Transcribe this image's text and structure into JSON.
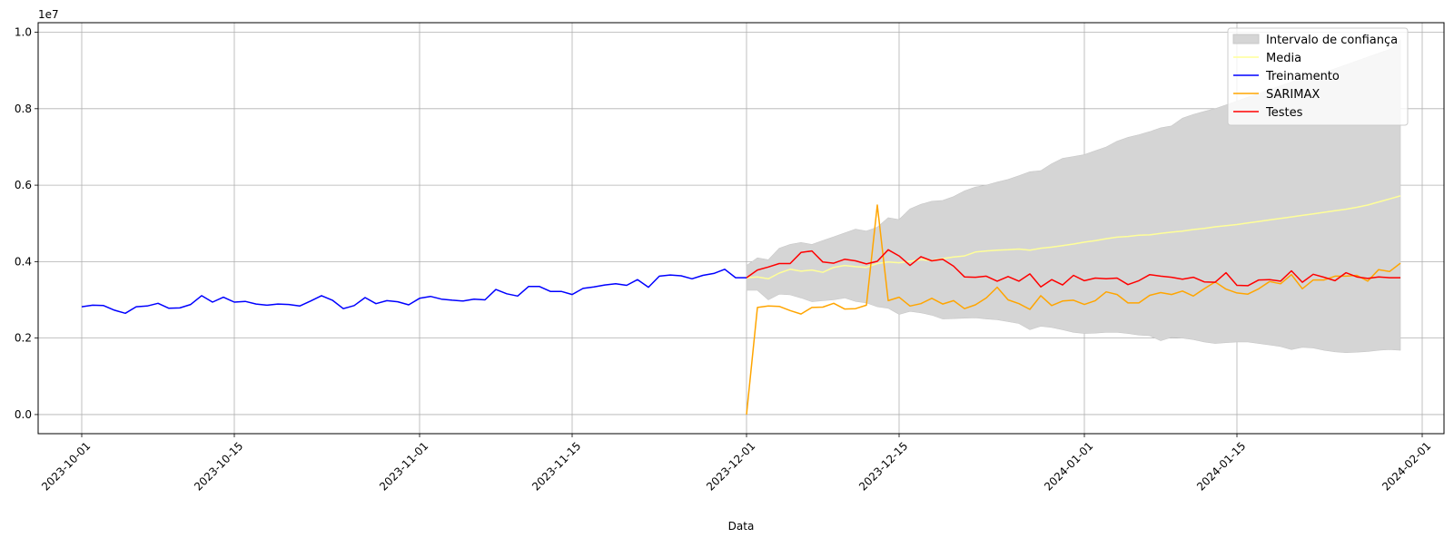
{
  "chart_data": {
    "type": "line",
    "xlabel": "Data",
    "ylabel": "",
    "y_scale_exponent": "1e7",
    "xlim": [
      "2023-09-27",
      "2024-02-03"
    ],
    "ylim": [
      -500000,
      10250000
    ],
    "grid": true,
    "legend_position": "top-right",
    "x_ticks": [
      "2023-10-01",
      "2023-10-15",
      "2023-11-01",
      "2023-11-15",
      "2023-12-01",
      "2023-12-15",
      "2024-01-01",
      "2024-01-15",
      "2024-02-01"
    ],
    "y_ticks": [
      0.0,
      0.2,
      0.4,
      0.6,
      0.8,
      1.0
    ],
    "legend": [
      "Intervalo de confiança",
      "Media",
      "Treinamento",
      "SARIMAX",
      "Testes"
    ],
    "series": [
      {
        "name": "Treinamento",
        "color": "#0000ff",
        "start_date": "2023-10-01",
        "values": [
          2820000,
          2860000,
          2850000,
          2730000,
          2650000,
          2820000,
          2840000,
          2910000,
          2780000,
          2790000,
          2880000,
          3110000,
          2940000,
          3070000,
          2940000,
          2960000,
          2890000,
          2860000,
          2890000,
          2880000,
          2840000,
          2970000,
          3110000,
          2990000,
          2770000,
          2850000,
          3060000,
          2900000,
          2980000,
          2950000,
          2870000,
          3040000,
          3090000,
          3020000,
          2990000,
          2970000,
          3020000,
          3000000,
          3270000,
          3160000,
          3100000,
          3350000,
          3350000,
          3220000,
          3220000,
          3140000,
          3300000,
          3340000,
          3390000,
          3420000,
          3380000,
          3530000,
          3330000,
          3620000,
          3650000,
          3630000,
          3550000,
          3640000,
          3690000,
          3800000,
          3580000,
          3580000
        ]
      },
      {
        "name": "Testes",
        "color": "#ff0000",
        "start_date": "2023-12-01",
        "values": [
          3580000,
          3780000,
          3860000,
          3950000,
          3950000,
          4240000,
          4280000,
          3990000,
          3960000,
          4060000,
          4020000,
          3940000,
          4010000,
          4310000,
          4150000,
          3900000,
          4130000,
          4020000,
          4060000,
          3880000,
          3600000,
          3590000,
          3620000,
          3490000,
          3610000,
          3490000,
          3680000,
          3340000,
          3530000,
          3390000,
          3640000,
          3500000,
          3570000,
          3550000,
          3570000,
          3400000,
          3500000,
          3660000,
          3620000,
          3590000,
          3540000,
          3590000,
          3470000,
          3460000,
          3710000,
          3380000,
          3370000,
          3520000,
          3530000,
          3490000,
          3760000,
          3460000,
          3670000,
          3590000,
          3500000,
          3710000,
          3600000,
          3560000,
          3600000,
          3580000,
          3580000
        ]
      },
      {
        "name": "SARIMAX",
        "color": "#ffa500",
        "start_date": "2023-12-01",
        "values": [
          0,
          2800000,
          2840000,
          2830000,
          2720000,
          2630000,
          2800000,
          2810000,
          2910000,
          2760000,
          2770000,
          2860000,
          5480000,
          2980000,
          3070000,
          2840000,
          2900000,
          3040000,
          2890000,
          2980000,
          2770000,
          2870000,
          3050000,
          3330000,
          3000000,
          2900000,
          2750000,
          3110000,
          2850000,
          2970000,
          2990000,
          2880000,
          2980000,
          3210000,
          3140000,
          2920000,
          2920000,
          3120000,
          3190000,
          3140000,
          3230000,
          3100000,
          3290000,
          3470000,
          3280000,
          3180000,
          3150000,
          3290000,
          3480000,
          3420000,
          3660000,
          3290000,
          3520000,
          3520000,
          3620000,
          3620000,
          3640000,
          3490000,
          3790000,
          3740000,
          3960000
        ]
      },
      {
        "name": "Media",
        "color": "#ffff99",
        "start_date": "2023-12-01",
        "values": [
          3580000,
          3600000,
          3550000,
          3700000,
          3800000,
          3750000,
          3780000,
          3720000,
          3850000,
          3900000,
          3870000,
          3850000,
          3950000,
          3990000,
          3970000,
          4010000,
          4050000,
          4030000,
          4080000,
          4120000,
          4150000,
          4250000,
          4280000,
          4300000,
          4310000,
          4330000,
          4300000,
          4350000,
          4380000,
          4420000,
          4460000,
          4510000,
          4550000,
          4600000,
          4640000,
          4660000,
          4690000,
          4700000,
          4740000,
          4770000,
          4800000,
          4840000,
          4870000,
          4910000,
          4940000,
          4970000,
          5010000,
          5050000,
          5090000,
          5130000,
          5170000,
          5210000,
          5250000,
          5290000,
          5330000,
          5370000,
          5420000,
          5480000,
          5560000,
          5640000,
          5720000
        ]
      },
      {
        "name": "Intervalo de confiança",
        "color": "#d5d5d5",
        "start_date": "2023-12-01",
        "upper": [
          3900000,
          4100000,
          4050000,
          4350000,
          4450000,
          4500000,
          4450000,
          4550000,
          4650000,
          4750000,
          4850000,
          4800000,
          4900000,
          5150000,
          5100000,
          5380000,
          5500000,
          5580000,
          5600000,
          5700000,
          5850000,
          5950000,
          6000000,
          6080000,
          6150000,
          6250000,
          6350000,
          6380000,
          6560000,
          6700000,
          6750000,
          6800000,
          6900000,
          7000000,
          7150000,
          7250000,
          7320000,
          7400000,
          7500000,
          7550000,
          7750000,
          7850000,
          7930000,
          8000000,
          8100000,
          8200000,
          8300000,
          8400000,
          8500000,
          8600000,
          8700000,
          8800000,
          8850000,
          8950000,
          9050000,
          9150000,
          9250000,
          9350000,
          9450000,
          9550000,
          9800000
        ],
        "lower": [
          3250000,
          3250000,
          3000000,
          3150000,
          3130000,
          3050000,
          2950000,
          2980000,
          3000000,
          3050000,
          2960000,
          2920000,
          2820000,
          2780000,
          2620000,
          2700000,
          2660000,
          2600000,
          2500000,
          2510000,
          2520000,
          2530000,
          2500000,
          2480000,
          2430000,
          2380000,
          2220000,
          2310000,
          2280000,
          2220000,
          2150000,
          2120000,
          2130000,
          2150000,
          2150000,
          2120000,
          2080000,
          2060000,
          1930000,
          2020000,
          2000000,
          1960000,
          1900000,
          1860000,
          1880000,
          1900000,
          1900000,
          1860000,
          1820000,
          1780000,
          1700000,
          1760000,
          1740000,
          1680000,
          1640000,
          1620000,
          1630000,
          1650000,
          1680000,
          1700000,
          1680000
        ]
      }
    ]
  }
}
